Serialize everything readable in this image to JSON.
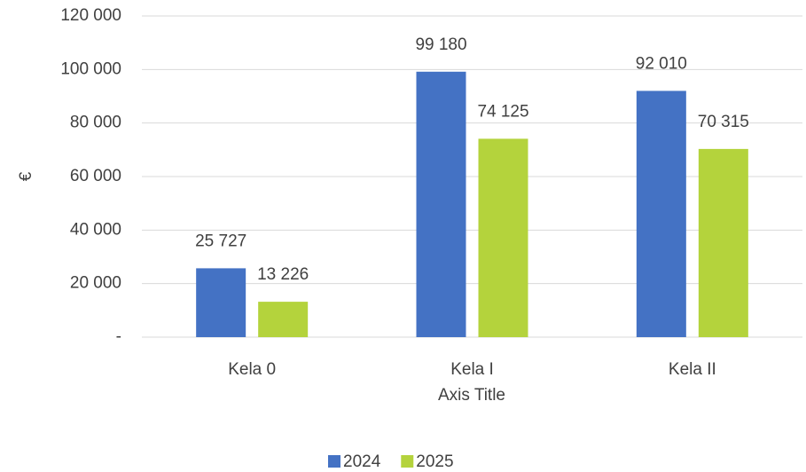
{
  "chart_data": {
    "type": "bar",
    "categories": [
      "Kela 0",
      "Kela I",
      "Kela II"
    ],
    "series": [
      {
        "name": "2024",
        "color": "#4472c4",
        "values": [
          25727,
          99180,
          92010
        ],
        "value_labels": [
          "25 727",
          "99 180",
          "92 010"
        ]
      },
      {
        "name": "2025",
        "color": "#b4d33c",
        "values": [
          13226,
          74125,
          70315
        ],
        "value_labels": [
          "13 226",
          "74 125",
          "70 315"
        ]
      }
    ],
    "y_label": "€",
    "x_label": "Axis Title",
    "ylim": [
      0,
      120000
    ],
    "yticks": [
      {
        "value": 0,
        "label": "-"
      },
      {
        "value": 20000,
        "label": "20 000"
      },
      {
        "value": 40000,
        "label": "40 000"
      },
      {
        "value": 60000,
        "label": "60 000"
      },
      {
        "value": 80000,
        "label": "80 000"
      },
      {
        "value": 100000,
        "label": "100 000"
      },
      {
        "value": 120000,
        "label": "120 000"
      }
    ],
    "grid": true,
    "legend": "bottom"
  }
}
